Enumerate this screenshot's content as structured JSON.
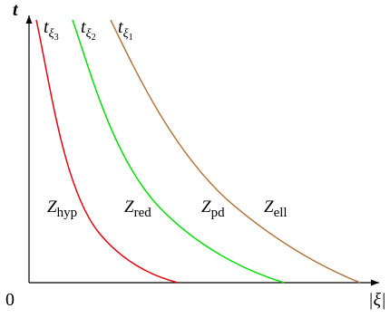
{
  "axes": {
    "origin_label": "0",
    "y_axis_label": "t",
    "x_axis_label": "|ξ|"
  },
  "curves": [
    {
      "symbol": "t",
      "subscript_letter": "ξ",
      "subscript_index": "3",
      "color": "#e8000b"
    },
    {
      "symbol": "t",
      "subscript_letter": "ξ",
      "subscript_index": "2",
      "color": "#00e000"
    },
    {
      "symbol": "t",
      "subscript_letter": "ξ",
      "subscript_index": "1",
      "color": "#b07840"
    }
  ],
  "regions": [
    {
      "symbol": "Z",
      "subscript": "hyp"
    },
    {
      "symbol": "Z",
      "subscript": "red"
    },
    {
      "symbol": "Z",
      "subscript": "pd"
    },
    {
      "symbol": "Z",
      "subscript": "ell"
    }
  ],
  "colors": {
    "axis": "#000000",
    "background": "#ffffff"
  }
}
